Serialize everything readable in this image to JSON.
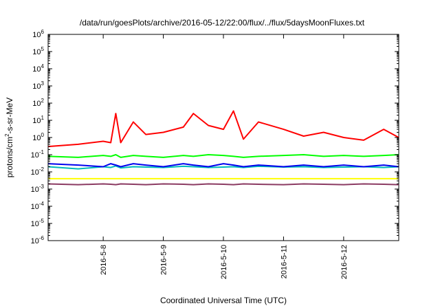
{
  "chart_data": {
    "type": "line",
    "title": "/data/run/goesPlots/archive/2016-05-12/22:00/flux/../flux/5daysMoonFluxes.txt",
    "xlabel": "Coordinated Universal Time (UTC)",
    "ylabel": "protons/cm²-s-sr-MeV",
    "ylabel_parts": [
      "protons/cm",
      "2",
      "-s-sr-MeV"
    ],
    "y_scale": "log",
    "ylim": [
      1e-06,
      1000000.0
    ],
    "y_ticks": [
      {
        "base": "10",
        "exp": "6",
        "value": 1000000.0
      },
      {
        "base": "10",
        "exp": "5",
        "value": 100000.0
      },
      {
        "base": "10",
        "exp": "4",
        "value": 10000.0
      },
      {
        "base": "10",
        "exp": "3",
        "value": 1000.0
      },
      {
        "base": "10",
        "exp": "2",
        "value": 100.0
      },
      {
        "base": "10",
        "exp": "1",
        "value": 10.0
      },
      {
        "base": "10",
        "exp": "0",
        "value": 1.0
      },
      {
        "base": "10",
        "exp": "-1",
        "value": 0.1
      },
      {
        "base": "10",
        "exp": "-2",
        "value": 0.01
      },
      {
        "base": "10",
        "exp": "-3",
        "value": 0.001
      },
      {
        "base": "10",
        "exp": "-4",
        "value": 0.0001
      },
      {
        "base": "10",
        "exp": "-5",
        "value": 1e-05
      },
      {
        "base": "10",
        "exp": "-6",
        "value": 1e-06
      }
    ],
    "xlim": [
      "2016-05-07 02:00",
      "2016-05-12 22:00"
    ],
    "x_ticks": [
      {
        "label": "2016-5-8",
        "value": "2016-05-08"
      },
      {
        "label": "2016-5-9",
        "value": "2016-05-09"
      },
      {
        "label": "2016-5-10",
        "value": "2016-05-10"
      },
      {
        "label": "2016-5-11",
        "value": "2016-05-11"
      },
      {
        "label": "2016-5-12",
        "value": "2016-05-12"
      }
    ],
    "grid": false,
    "legend": "none",
    "x": [
      "2016-05-07 02:00",
      "2016-05-07 14:00",
      "2016-05-08 00:00",
      "2016-05-08 03:00",
      "2016-05-08 05:00",
      "2016-05-08 07:00",
      "2016-05-08 12:00",
      "2016-05-08 17:00",
      "2016-05-09 00:00",
      "2016-05-09 08:00",
      "2016-05-09 12:00",
      "2016-05-09 18:00",
      "2016-05-10 00:00",
      "2016-05-10 04:00",
      "2016-05-10 08:00",
      "2016-05-10 14:00",
      "2016-05-11 00:00",
      "2016-05-11 08:00",
      "2016-05-11 16:00",
      "2016-05-12 00:00",
      "2016-05-12 08:00",
      "2016-05-12 16:00",
      "2016-05-12 22:00"
    ],
    "series": [
      {
        "color": "#ff0000",
        "values": [
          0.3,
          0.4,
          0.6,
          0.5,
          25,
          0.5,
          8,
          1.5,
          2.0,
          4,
          25,
          5,
          3,
          35,
          0.8,
          8,
          3,
          1.2,
          2.0,
          1.0,
          0.7,
          3.0,
          1.0
        ]
      },
      {
        "color": "#00ff00",
        "values": [
          0.08,
          0.07,
          0.09,
          0.08,
          0.1,
          0.07,
          0.09,
          0.08,
          0.07,
          0.09,
          0.08,
          0.1,
          0.09,
          0.08,
          0.07,
          0.08,
          0.09,
          0.1,
          0.08,
          0.09,
          0.08,
          0.09,
          0.1
        ]
      },
      {
        "color": "#00bbbb",
        "values": [
          0.02,
          0.015,
          0.02,
          0.018,
          0.022,
          0.017,
          0.02,
          0.019,
          0.018,
          0.021,
          0.02,
          0.018,
          0.019,
          0.02,
          0.018,
          0.021,
          0.019,
          0.02,
          0.018,
          0.019,
          0.02,
          0.018,
          0.02
        ]
      },
      {
        "color": "#0000ee",
        "values": [
          0.03,
          0.025,
          0.02,
          0.03,
          0.025,
          0.02,
          0.03,
          0.025,
          0.02,
          0.03,
          0.025,
          0.02,
          0.03,
          0.025,
          0.02,
          0.025,
          0.02,
          0.025,
          0.02,
          0.025,
          0.02,
          0.025,
          0.02
        ]
      },
      {
        "color": "#ffff00",
        "values": [
          0.004,
          0.004,
          0.004,
          0.004,
          0.004,
          0.004,
          0.004,
          0.004,
          0.004,
          0.004,
          0.004,
          0.004,
          0.004,
          0.004,
          0.004,
          0.004,
          0.004,
          0.004,
          0.004,
          0.004,
          0.004,
          0.004,
          0.004
        ]
      },
      {
        "color": "#8b3a62",
        "values": [
          0.002,
          0.0018,
          0.002,
          0.0019,
          0.0018,
          0.002,
          0.0019,
          0.0018,
          0.002,
          0.0019,
          0.0018,
          0.002,
          0.0019,
          0.0018,
          0.002,
          0.0019,
          0.0018,
          0.002,
          0.0019,
          0.0018,
          0.002,
          0.0019,
          0.0018
        ]
      }
    ]
  }
}
